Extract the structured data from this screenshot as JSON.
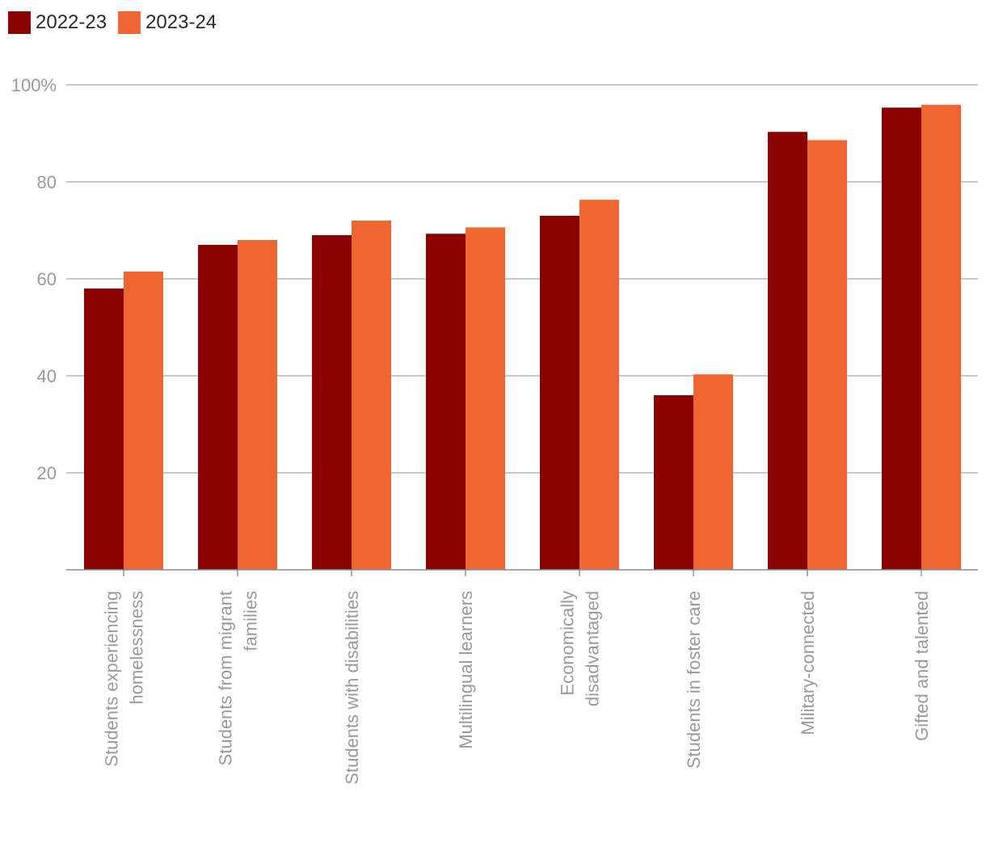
{
  "chart_data": {
    "type": "bar",
    "title": "",
    "xlabel": "",
    "ylabel": "",
    "ylim": [
      0,
      100
    ],
    "yticks": [
      {
        "value": 20,
        "label": "20"
      },
      {
        "value": 40,
        "label": "40"
      },
      {
        "value": 60,
        "label": "60"
      },
      {
        "value": 80,
        "label": "80"
      },
      {
        "value": 100,
        "label": "100%"
      }
    ],
    "grid": true,
    "legend_position": "top-left",
    "categories": [
      [
        "Students experiencing",
        "homelessness"
      ],
      [
        "Students from migrant",
        "families"
      ],
      [
        "Students with disabilities"
      ],
      [
        "Multilingual learners"
      ],
      [
        "Economically",
        "disadvantaged"
      ],
      [
        "Students in foster care"
      ],
      [
        "Military-connected"
      ],
      [
        "Gifted and talented"
      ]
    ],
    "series": [
      {
        "name": "2022-23",
        "color": "#8b0000",
        "values": [
          58,
          67,
          69,
          69.3,
          73,
          36,
          90.3,
          95.3
        ]
      },
      {
        "name": "2023-24",
        "color": "#f06632",
        "values": [
          61.5,
          68,
          72,
          70.6,
          76.3,
          40.3,
          88.6,
          95.9
        ]
      }
    ]
  }
}
